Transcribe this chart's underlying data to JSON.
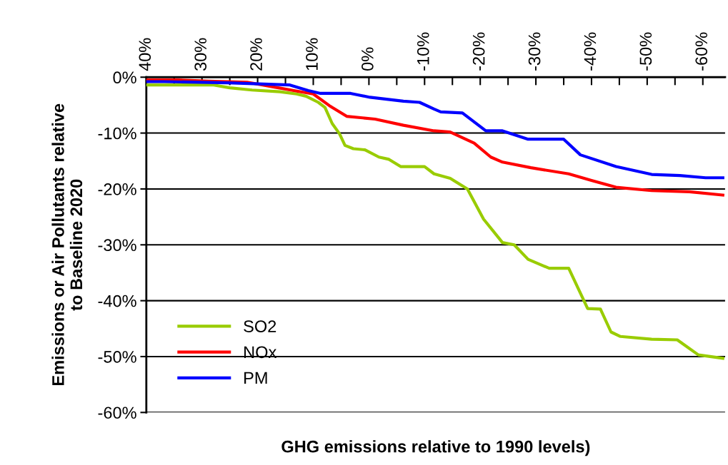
{
  "chart_data": {
    "type": "line",
    "xlabel": "GHG emissions relative to 1990 levels)",
    "ylabel": "Emissions or Air Pollutants relative\nto Baseline 2020",
    "xlim": [
      40,
      -64
    ],
    "ylim": [
      -60,
      0
    ],
    "xticks": [
      {
        "value": 40,
        "label": "40%"
      },
      {
        "value": 35,
        "label": null
      },
      {
        "value": 30,
        "label": "30%"
      },
      {
        "value": 25,
        "label": null
      },
      {
        "value": 20,
        "label": "20%"
      },
      {
        "value": 15,
        "label": null
      },
      {
        "value": 10,
        "label": "10%"
      },
      {
        "value": 5,
        "label": null
      },
      {
        "value": 0,
        "label": "0%"
      },
      {
        "value": -5,
        "label": null
      },
      {
        "value": -10,
        "label": "-10%"
      },
      {
        "value": -15,
        "label": null
      },
      {
        "value": -20,
        "label": "-20%"
      },
      {
        "value": -25,
        "label": null
      },
      {
        "value": -30,
        "label": "-30%"
      },
      {
        "value": -35,
        "label": null
      },
      {
        "value": -40,
        "label": "-40%"
      },
      {
        "value": -45,
        "label": null
      },
      {
        "value": -50,
        "label": "-50%"
      },
      {
        "value": -55,
        "label": null
      },
      {
        "value": -60,
        "label": "-60%"
      }
    ],
    "yticks": [
      {
        "value": 0,
        "label": "0%"
      },
      {
        "value": -10,
        "label": "-10%"
      },
      {
        "value": -20,
        "label": "-20%"
      },
      {
        "value": -30,
        "label": "-30%"
      },
      {
        "value": -40,
        "label": "-40%"
      },
      {
        "value": -50,
        "label": "-50%"
      },
      {
        "value": -60,
        "label": "-60%"
      }
    ],
    "grid": "y",
    "legend": "bottom left",
    "marker": "none",
    "line_style": "solid",
    "series": [
      {
        "name": "SO2",
        "color": "#99cc00",
        "x": [
          40,
          27.9,
          25,
          21,
          16,
          13,
          11.3,
          9.1,
          7.9,
          6.6,
          5.3,
          4.3,
          2.8,
          0.7,
          -1.8,
          -3.6,
          -5.7,
          -10,
          -11.7,
          -14.6,
          -17.7,
          -20.6,
          -24,
          -26.1,
          -28.6,
          -32.4,
          -35.9,
          -39.3,
          -41.6,
          -43.5,
          -45.2,
          -50.8,
          -55.4,
          -59.2,
          -63.6
        ],
        "values": [
          -1.4,
          -1.4,
          -1.9,
          -2.3,
          -2.6,
          -3.0,
          -3.4,
          -4.5,
          -5.4,
          -8.3,
          -10.1,
          -12.2,
          -12.8,
          -13.0,
          -14.3,
          -14.7,
          -16.0,
          -16.0,
          -17.3,
          -18.1,
          -20.0,
          -25.4,
          -29.6,
          -30.0,
          -32.6,
          -34.2,
          -34.2,
          -41.4,
          -41.5,
          -45.6,
          -46.4,
          -46.9,
          -47.0,
          -49.7,
          -50.3
        ]
      },
      {
        "name": "NOx",
        "color": "#ff0000",
        "x": [
          40,
          34.3,
          28.8,
          21.9,
          16.8,
          13.5,
          10,
          7.1,
          4,
          -1.1,
          -6.2,
          -11.7,
          -14.6,
          -18.9,
          -21.9,
          -24,
          -29.1,
          -35.9,
          -40.1,
          -44.4,
          -50.8,
          -57.6,
          -63.6
        ],
        "values": [
          -0.5,
          -0.5,
          -0.7,
          -0.9,
          -1.8,
          -2.4,
          -3.0,
          -5.1,
          -7.0,
          -7.5,
          -8.6,
          -9.6,
          -9.8,
          -11.8,
          -14.3,
          -15.2,
          -16.2,
          -17.3,
          -18.5,
          -19.7,
          -20.3,
          -20.5,
          -21.1
        ]
      },
      {
        "name": "PM",
        "color": "#0000ff",
        "x": [
          40,
          36.8,
          25.3,
          14.2,
          10.9,
          8.7,
          3.3,
          -0.2,
          -6.2,
          -9.1,
          -11.7,
          -12.9,
          -16.8,
          -21,
          -24,
          -28.6,
          -35,
          -38,
          -44.4,
          -50.8,
          -55.9,
          -60.5,
          -63.6
        ],
        "values": [
          -0.8,
          -0.8,
          -1.0,
          -1.4,
          -2.4,
          -2.9,
          -2.9,
          -3.6,
          -4.3,
          -4.5,
          -5.7,
          -6.2,
          -6.4,
          -9.6,
          -9.6,
          -11.1,
          -11.1,
          -13.9,
          -16.0,
          -17.4,
          -17.6,
          -18.0,
          -18.0
        ]
      }
    ]
  }
}
